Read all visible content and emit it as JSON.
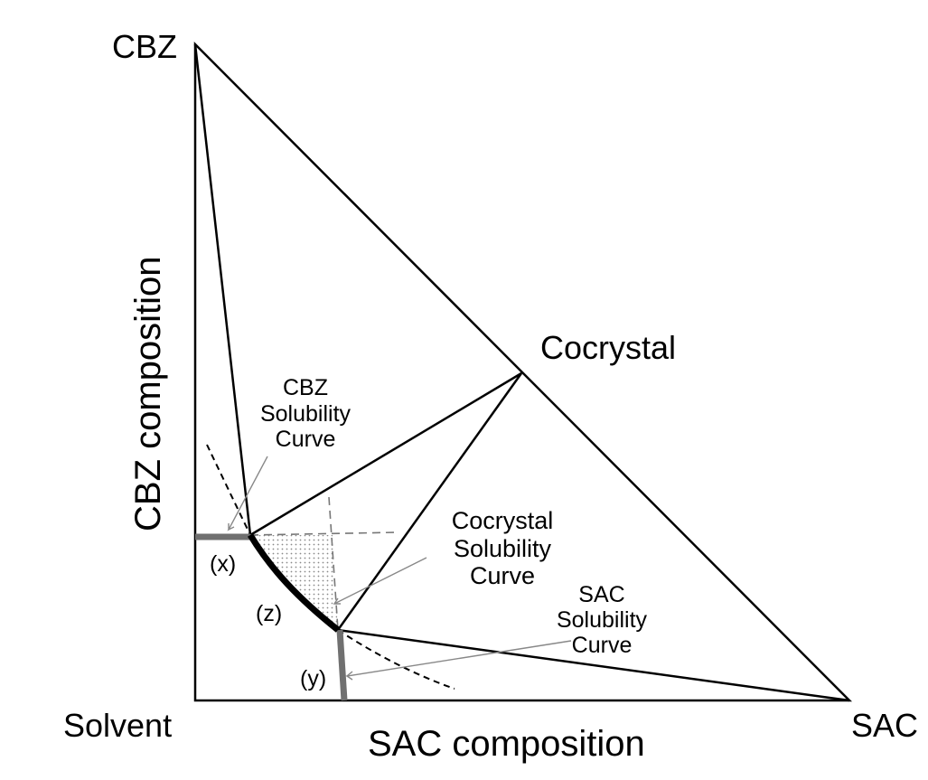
{
  "vertices": {
    "top": "CBZ",
    "bottom_left": "Solvent",
    "bottom_right": "SAC",
    "edge_point": "Cocrystal"
  },
  "axes": {
    "vertical": "CBZ composition",
    "horizontal": "SAC composition"
  },
  "annotations": {
    "cbz_curve": [
      "CBZ",
      "Solubility",
      "Curve"
    ],
    "cocrystal_curve": [
      "Cocrystal",
      "Solubility",
      "Curve"
    ],
    "sac_curve": [
      "SAC",
      "Solubility",
      "Curve"
    ]
  },
  "region_labels": {
    "x": "(x)",
    "y": "(y)",
    "z": "(z)"
  },
  "colors": {
    "line": "#000000",
    "gray_segment": "#707070",
    "dashed": "#777777",
    "fill_pattern": "#9a9a9a"
  }
}
